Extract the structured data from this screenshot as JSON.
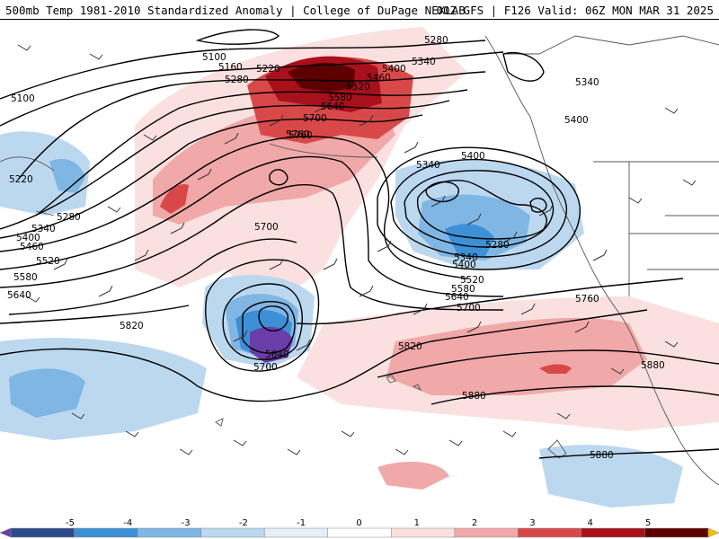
{
  "header": {
    "title": "500mb Temp 1981-2010 Standardized Anomaly | College of DuPage NEXLAB",
    "run_info": "00Z GFS | F126 Valid: 06Z MON MAR 31 2025"
  },
  "contours": {
    "labels": [
      {
        "text": "5100"
      },
      {
        "text": "5160"
      },
      {
        "text": "5220"
      },
      {
        "text": "5280"
      },
      {
        "text": "5340"
      },
      {
        "text": "5400"
      },
      {
        "text": "5460"
      },
      {
        "text": "5520"
      },
      {
        "text": "5580"
      },
      {
        "text": "5640"
      },
      {
        "text": "5700"
      },
      {
        "text": "5760"
      },
      {
        "text": "5100"
      },
      {
        "text": "5220"
      },
      {
        "text": "5280"
      },
      {
        "text": "5340"
      },
      {
        "text": "5400"
      },
      {
        "text": "5460"
      },
      {
        "text": "5520"
      },
      {
        "text": "5580"
      },
      {
        "text": "5640"
      },
      {
        "text": "5280"
      },
      {
        "text": "5340"
      },
      {
        "text": "5400"
      },
      {
        "text": "5400"
      },
      {
        "text": "5340"
      },
      {
        "text": "5280"
      },
      {
        "text": "5340"
      },
      {
        "text": "5400"
      },
      {
        "text": "5520"
      },
      {
        "text": "5580"
      },
      {
        "text": "5640"
      },
      {
        "text": "5700"
      },
      {
        "text": "5700"
      },
      {
        "text": "5760"
      },
      {
        "text": "5760"
      },
      {
        "text": "5820"
      },
      {
        "text": "5820"
      },
      {
        "text": "5640"
      },
      {
        "text": "5700"
      },
      {
        "text": "5880"
      },
      {
        "text": "5880"
      },
      {
        "text": "5880"
      }
    ]
  },
  "colorbar": {
    "ticks": [
      "-5",
      "-4",
      "-3",
      "-2",
      "-1",
      "0",
      "1",
      "2",
      "3",
      "4",
      "5"
    ],
    "colors": [
      "#6a3ea8",
      "#2c4a8a",
      "#3d8fd6",
      "#7fb6e4",
      "#bcd8ef",
      "#e6eef8",
      "#ffffff",
      "#fbe0e0",
      "#f0a8a8",
      "#d84848",
      "#a8101c",
      "#5c0000",
      "#f2c200"
    ]
  },
  "colors": {
    "warm_strong": "#a8101c",
    "warm_mid": "#d84848",
    "warm_light": "#f0a8a8",
    "warm_faint": "#fbe0e0",
    "cold_strong": "#6a3ea8",
    "cold_mid": "#3d8fd6",
    "cold_light": "#7fb6e4",
    "cold_faint": "#bcd8ef"
  }
}
